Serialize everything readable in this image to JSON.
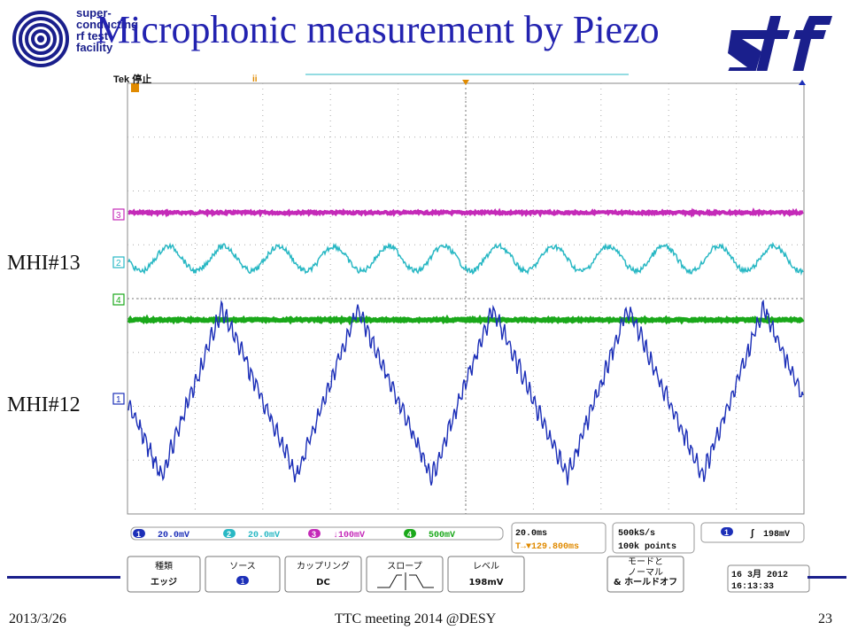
{
  "slide": {
    "title": "Microphonic measurement by Piezo",
    "logo_text": [
      "super-",
      "conducting",
      "rf test",
      "facility"
    ],
    "brand": "stf",
    "labels": {
      "upper": "MHI#13",
      "lower": "MHI#12"
    },
    "footer": {
      "date": "2013/3/26",
      "center": "TTC meeting 2014 @DESY",
      "page": "23"
    }
  },
  "scope": {
    "status": "Tek 停止",
    "channels": [
      {
        "num": "1",
        "scale": "20.0mV",
        "color": "#1c2fb8"
      },
      {
        "num": "2",
        "scale": "20.0mV",
        "color": "#29b8c4"
      },
      {
        "num": "3",
        "scale": "↓100mV",
        "color": "#c42ab8"
      },
      {
        "num": "4",
        "scale": "500mV",
        "color": "#1aa81a"
      }
    ],
    "timebase": "20.0ms",
    "trigger_pos": "T→▼129.800ms",
    "sample_rate": "500kS/s",
    "record_length": "100k points",
    "trigger_ch": "1",
    "trigger_level": "198mV",
    "menu": [
      {
        "top": "種類",
        "bottom": "エッジ"
      },
      {
        "top": "ソース",
        "bottom": "1"
      },
      {
        "top": "カップリング",
        "bottom": "DC"
      },
      {
        "top": "スロープ",
        "bottom": ""
      },
      {
        "top": "レベル",
        "bottom": "198mV"
      },
      {
        "top": "モードと",
        "mid": "ノーマル",
        "bottom": "& ホールドオフ"
      }
    ],
    "datetime": {
      "date": "16 3月 2012",
      "time": "16:13:33"
    }
  },
  "colors": {
    "title": "#2323b0",
    "logo": "#1a1f8c",
    "ch1": "#1c2fb8",
    "ch2": "#29b8c4",
    "ch3": "#c42ab8",
    "ch4": "#1aa81a",
    "trigger": "#e08a00"
  }
}
